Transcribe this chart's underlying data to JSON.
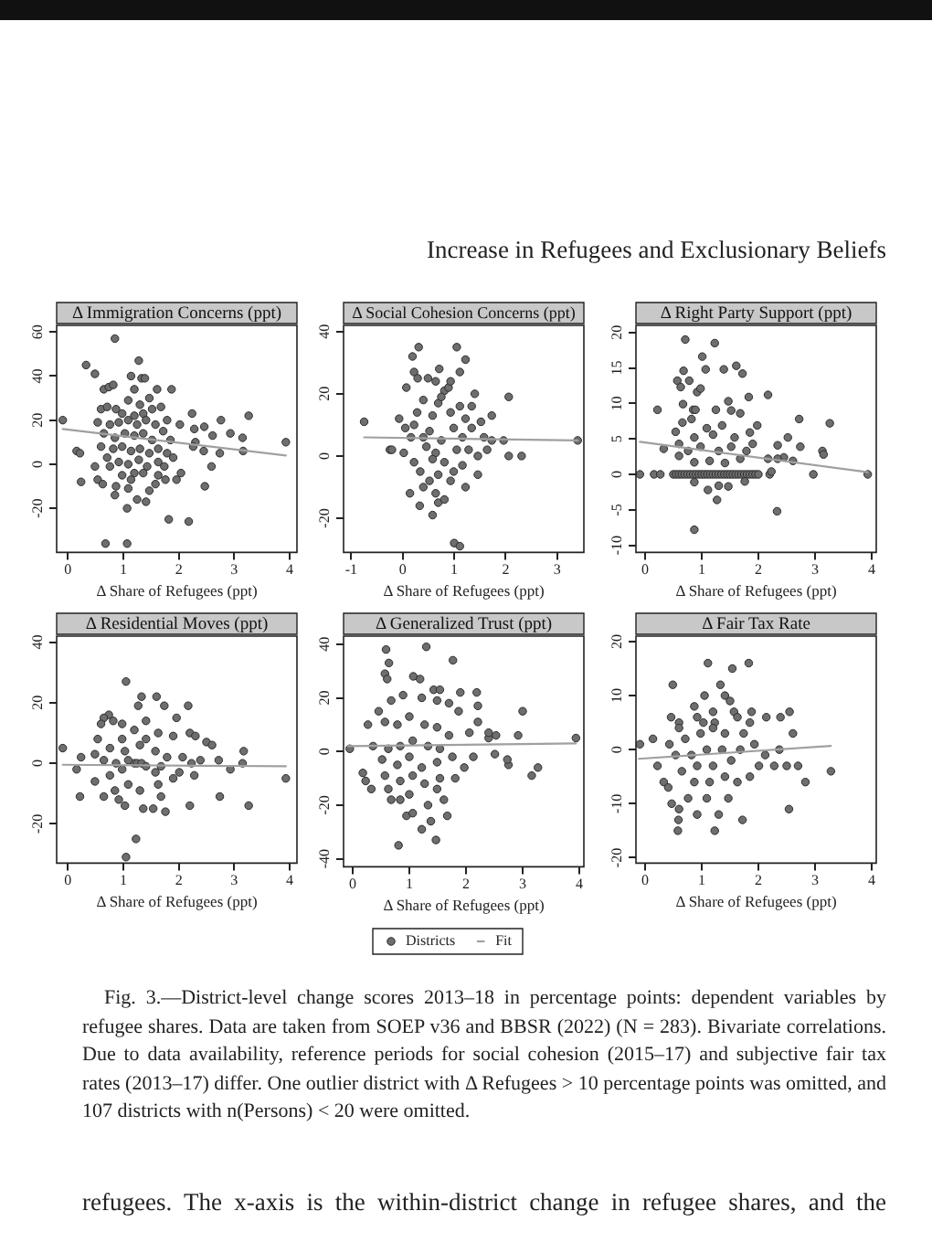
{
  "chart_data": [
    {
      "type": "scatter",
      "title": "Δ Immigration Concerns (ppt)",
      "xlabel": "Δ Share of Refugees (ppt)",
      "xlim": [
        -0.2,
        4.13
      ],
      "xticks": [
        0,
        1,
        2,
        3,
        4
      ],
      "ylim": [
        -40,
        63
      ],
      "yticks": [
        -20,
        0,
        20,
        40,
        60
      ],
      "marker": "circle",
      "annotations": [
        "Increase in Refugees and Exclusionary Beliefs"
      ],
      "series": [
        {
          "type": "scatter",
          "color": "#6e6e6e",
          "x": [
            0.85,
            0.33,
            0.49,
            1.28,
            -0.09,
            0.16,
            0.22,
            0.24,
            0.68,
            1.07,
            1.07,
            0.85,
            1.41,
            1.82,
            2.18,
            1.87,
            2.24,
            2.28,
            2.46,
            2.61,
            2.76,
            2.93,
            3.15,
            3.26,
            3.16,
            2.74,
            3.93,
            2.59,
            2.47,
            1.96,
            1.76,
            2.04,
            2.02,
            2.3,
            2.45,
            2.26,
            0.76,
            0.54,
            0.63,
            0.49,
            1.2,
            1.25,
            1.47,
            0.65,
            0.74,
            0.82,
            1.14,
            1.33,
            1.39,
            1.61,
            1.2,
            1.09,
            1.3,
            1.47,
            0.6,
            0.71,
            0.87,
            0.98,
            1.2,
            1.36,
            1.52,
            1.68,
            1.79,
            0.54,
            0.76,
            0.92,
            1.09,
            1.25,
            1.41,
            1.58,
            1.72,
            0.65,
            0.85,
            1.03,
            1.2,
            1.36,
            1.52,
            1.85,
            0.6,
            0.82,
            0.98,
            1.14,
            1.3,
            1.47,
            1.63,
            1.79,
            0.71,
            0.92,
            1.09,
            1.28,
            1.43,
            1.63,
            0.98,
            1.14,
            1.36,
            1.63,
            0.87,
            1.09,
            1.58,
            1.74,
            1.9
          ],
          "values": [
            57,
            45,
            41,
            47,
            20,
            6,
            5,
            -8,
            -36,
            -36,
            -20,
            -14,
            -17,
            -25,
            -26,
            34,
            23,
            16,
            17,
            13,
            20,
            14,
            12,
            22,
            6,
            5,
            10,
            -1,
            -10,
            -7,
            -7,
            -4,
            18,
            10,
            6,
            8,
            -1,
            -7,
            -9,
            -1,
            -4,
            -16,
            -12,
            34,
            35,
            36,
            40,
            39,
            39,
            34,
            34,
            29,
            27,
            30,
            25,
            26,
            25,
            23,
            22,
            23,
            25,
            26,
            20,
            19,
            18,
            19,
            20,
            18,
            20,
            18,
            15,
            14,
            12,
            14,
            13,
            14,
            11,
            11,
            8,
            7,
            8,
            6,
            7,
            5,
            7,
            5,
            3,
            1,
            0,
            2,
            -1,
            1,
            -5,
            -7,
            -4,
            -5,
            -10,
            -11,
            -9,
            -1,
            3
          ]
        },
        {
          "type": "line",
          "color": "#a0a0a0",
          "marker": "none",
          "x": [
            -0.09,
            3.93
          ],
          "values": [
            16,
            4
          ]
        }
      ]
    },
    {
      "type": "scatter",
      "title": "Δ Social Cohesion Concerns (ppt)",
      "xlabel": "Δ Share of Refugees (ppt)",
      "xlim": [
        -1.15,
        3.52
      ],
      "xticks": [
        -1,
        0,
        1,
        2,
        3
      ],
      "ylim": [
        -31,
        42
      ],
      "yticks": [
        -20,
        0,
        20,
        40
      ],
      "marker": "circle",
      "series": [
        {
          "type": "scatter",
          "color": "#6e6e6e",
          "x": [
            -0.75,
            -0.25,
            -0.21,
            0.31,
            1.05,
            0.19,
            1.22,
            0.71,
            0.22,
            0.29,
            1.11,
            0.07,
            2.06,
            1.73,
            1.96,
            2.06,
            2.31,
            3.4,
            0.33,
            0.58,
            1.0,
            1.11,
            0.69,
            0.81,
            0.14,
            1.22,
            1.46,
            1.64,
            1.73,
            1.34,
            1.4,
            -0.07,
            0.05,
            0.16,
            0.02,
            0.22,
            0.34,
            0.46,
            0.52,
            0.58,
            0.69,
            0.81,
            0.89,
            0.93,
            0.99,
            0.75,
            0.64,
            0.81,
            0.99,
            1.16,
            1.28,
            1.16,
            1.34,
            1.22,
            1.52,
            1.11,
            0.4,
            0.28,
            0.22,
            0.4,
            0.58,
            0.69,
            0.93,
            0.52,
            0.4,
            0.64,
            1.05,
            1.46,
            1.58,
            0.64,
            0.93,
            0.49,
            0.75
          ],
          "values": [
            11,
            2,
            2,
            35,
            35,
            32,
            31,
            28,
            27,
            25,
            27,
            22,
            19,
            5,
            5,
            0,
            0,
            5,
            -16,
            -19,
            -28,
            -29,
            -15,
            -14,
            -12,
            -10,
            -6,
            2,
            13,
            16,
            20,
            12,
            9,
            6,
            1,
            -2,
            -5,
            3,
            8,
            13,
            17,
            21,
            22,
            14,
            9,
            5,
            1,
            -2,
            -5,
            -3,
            2,
            6,
            9,
            12,
            11,
            16,
            18,
            14,
            10,
            6,
            -1,
            -6,
            -8,
            -8,
            -10,
            -12,
            2,
            0,
            6,
            24,
            24,
            25,
            19
          ]
        },
        {
          "type": "line",
          "color": "#a0a0a0",
          "marker": "none",
          "x": [
            -0.75,
            3.4
          ],
          "values": [
            6,
            5
          ]
        }
      ]
    },
    {
      "type": "scatter",
      "title": "Δ Right Party Support (ppt)",
      "xlabel": "Δ Share of Refugees (ppt)",
      "xlim": [
        -0.16,
        4.08
      ],
      "xticks": [
        0,
        1,
        2,
        3,
        4
      ],
      "ylim": [
        -11,
        21
      ],
      "yticks": [
        -10,
        -5,
        0,
        5,
        10,
        15,
        20
      ],
      "marker": "circle",
      "series": [
        {
          "type": "scatter",
          "color": "#6e6e6e",
          "x": [
            -0.09,
            0.16,
            0.27,
            0.5,
            0.55,
            0.6,
            0.65,
            0.7,
            0.75,
            0.8,
            0.85,
            0.9,
            0.95,
            1.0,
            1.05,
            1.1,
            1.15,
            1.2,
            1.25,
            1.3,
            1.35,
            1.4,
            1.45,
            1.5,
            1.55,
            1.6,
            1.65,
            1.7,
            1.75,
            1.8,
            1.85,
            1.9,
            1.95,
            2.0,
            2.2,
            2.97,
            3.93,
            0.71,
            1.23,
            1.01,
            0.68,
            1.07,
            1.61,
            1.39,
            1.72,
            0.57,
            0.63,
            0.78,
            0.92,
            0.98,
            2.17,
            1.83,
            0.22,
            0.85,
            0.89,
            1.47,
            1.25,
            1.52,
            1.68,
            0.67,
            2.72,
            3.26,
            1.98,
            0.66,
            0.82,
            1.09,
            1.36,
            0.54,
            0.87,
            1.2,
            1.58,
            1.85,
            0.33,
            0.6,
            0.76,
            0.98,
            1.3,
            1.52,
            1.79,
            1.9,
            2.52,
            2.34,
            2.45,
            2.61,
            2.74,
            3.13,
            3.15,
            2.17,
            2.34,
            0.6,
            0.87,
            1.14,
            1.41,
            1.68,
            2.23,
            0.87,
            1.11,
            1.3,
            1.27,
            1.47,
            1.76,
            2.33,
            0.87
          ],
          "values": [
            0,
            0,
            0,
            0,
            0,
            0,
            0,
            0,
            0,
            0,
            0,
            0,
            0,
            0,
            0,
            0,
            0,
            0,
            0,
            0,
            0,
            0,
            0,
            0,
            0,
            0,
            0,
            0,
            0,
            0,
            0,
            0,
            0,
            0,
            0,
            0,
            0,
            19,
            18.5,
            16.6,
            14.6,
            14.8,
            15.3,
            14.8,
            14.2,
            13.2,
            12.3,
            13.2,
            11.6,
            12.1,
            11.2,
            10.9,
            9.1,
            9.1,
            9.1,
            10.3,
            9.1,
            9,
            8.6,
            9.9,
            7.8,
            7.2,
            6.9,
            7.3,
            7.8,
            6.5,
            6.9,
            6,
            5.2,
            5.6,
            5.2,
            5.9,
            3.6,
            4.3,
            3.3,
            3.9,
            3.3,
            3.9,
            3.3,
            4.3,
            5.2,
            4.1,
            2.4,
            1.9,
            3.9,
            3.3,
            2.8,
            2.2,
            2.2,
            2.6,
            1.7,
            1.9,
            1.6,
            2.2,
            0.4,
            -1.1,
            -2.2,
            -1.6,
            -3.6,
            -1.7,
            -1,
            -5.2,
            -7.8
          ]
        },
        {
          "type": "line",
          "color": "#a0a0a0",
          "marker": "none",
          "x": [
            -0.09,
            3.93
          ],
          "values": [
            4.6,
            0.3
          ]
        }
      ]
    },
    {
      "type": "scatter",
      "title": "Δ Residential Moves (ppt)",
      "xlabel": "Δ Share of Refugees (ppt)",
      "xlim": [
        -0.2,
        4.13
      ],
      "xticks": [
        0,
        1,
        2,
        3,
        4
      ],
      "ylim": [
        -33,
        42
      ],
      "yticks": [
        -20,
        0,
        20,
        40
      ],
      "marker": "circle",
      "series": [
        {
          "type": "scatter",
          "color": "#6e6e6e",
          "x": [
            1.05,
            1.33,
            1.6,
            1.74,
            1.27,
            2.17,
            1.96,
            0.74,
            0.65,
            0.6,
            0.82,
            0.98,
            1.2,
            1.41,
            1.63,
            1.9,
            2.2,
            2.3,
            2.5,
            2.6,
            2.72,
            2.93,
            3.17,
            3.15,
            3.93,
            -0.09,
            0.24,
            0.16,
            0.22,
            2.2,
            2.74,
            3.26,
            1.76,
            1.54,
            1.23,
            1.05,
            1.36,
            1.03,
            0.65,
            0.85,
            1.09,
            1.3,
            1.63,
            1.9,
            0.49,
            0.76,
            0.98,
            1.2,
            1.25,
            1.33,
            1.41,
            1.09,
            0.87,
            0.65,
            0.49,
            0.76,
            1.03,
            1.3,
            1.58,
            1.79,
            2.07,
            2.23,
            2.39,
            0.54,
            0.98,
            1.41,
            1.68,
            2.01,
            2.28,
            1.68,
            0.92,
            1.58
          ],
          "values": [
            27,
            22,
            22,
            19,
            19,
            19,
            15,
            16,
            15,
            13,
            14,
            13,
            11,
            14,
            10,
            9,
            10,
            9,
            7,
            6,
            1,
            -2,
            4,
            0,
            -5,
            5,
            2,
            -2,
            -11,
            -14,
            -11,
            -14,
            -16,
            -15,
            -25,
            -31,
            -15,
            -14,
            -11,
            -9,
            -7,
            -9,
            -7,
            -5,
            -6,
            -4,
            -2,
            0,
            0,
            0,
            -1,
            1,
            0,
            1,
            3,
            5,
            4,
            6,
            4,
            2,
            2,
            0,
            1,
            8,
            8,
            8,
            -1,
            -3,
            -4,
            -11,
            -12,
            -3
          ]
        },
        {
          "type": "line",
          "color": "#a0a0a0",
          "marker": "none",
          "x": [
            -0.09,
            3.93
          ],
          "values": [
            -0.5,
            -1
          ]
        }
      ]
    },
    {
      "type": "scatter",
      "title": "Δ Generalized Trust (ppt)",
      "xlabel": "Δ Share of Refugees (ppt)",
      "xlim": [
        -0.16,
        4.08
      ],
      "xticks": [
        0,
        1,
        2,
        3,
        4
      ],
      "ylim": [
        -43,
        43
      ],
      "yticks": [
        -40,
        -20,
        0,
        20,
        40
      ],
      "marker": "circle",
      "legend": "bottom",
      "series": [
        {
          "type": "scatter",
          "name": "Districts",
          "color": "#6e6e6e",
          "x": [
            1.3,
            0.59,
            0.64,
            1.77,
            0.57,
            0.61,
            1.07,
            1.19,
            0.27,
            -0.05,
            0.18,
            0.23,
            0.33,
            0.81,
            1.22,
            1.47,
            1.38,
            1.67,
            0.95,
            1.06,
            0.68,
            0.84,
            1.33,
            1.61,
            3.0,
            2.92,
            3.16,
            3.27,
            3.94,
            2.75,
            2.73,
            2.51,
            2.53,
            2.4,
            2.21,
            2.21,
            1.9,
            2.19,
            2.4,
            2.06,
            2.13,
            1.97,
            1.81,
            1.87,
            1.7,
            1.49,
            1.22,
            0.89,
            0.68,
            0.46,
            0.57,
            0.79,
            1.0,
            1.27,
            1.49,
            1.7,
            0.36,
            0.63,
            0.84,
            1.06,
            1.33,
            1.54,
            0.52,
            0.79,
            1.0,
            1.22,
            1.49,
            1.76,
            0.57,
            0.84,
            1.06,
            1.27,
            1.54,
            0.63,
            1.0,
            1.49,
            1.43,
            1.54
          ],
          "values": [
            39,
            38,
            33,
            34,
            29,
            27,
            28,
            27,
            10,
            1,
            -8,
            -11,
            -14,
            -35,
            -29,
            -33,
            -26,
            -24,
            -24,
            -23,
            -18,
            -18,
            -20,
            -18,
            15,
            6,
            -9,
            -6,
            5,
            -5,
            -3,
            -1,
            6,
            5,
            11,
            17,
            22,
            22,
            7,
            7,
            -2,
            -6,
            -10,
            15,
            18,
            19,
            20,
            21,
            19,
            15,
            11,
            10,
            13,
            10,
            9,
            6,
            2,
            1,
            2,
            4,
            2,
            1,
            -3,
            -5,
            -2,
            -6,
            -4,
            -2,
            -9,
            -11,
            -9,
            -12,
            -10,
            -14,
            -16,
            -14,
            23,
            23
          ]
        },
        {
          "type": "line",
          "name": "Fit",
          "color": "#a0a0a0",
          "marker": "none",
          "x": [
            -0.08,
            3.94
          ],
          "values": [
            2,
            3
          ]
        }
      ]
    },
    {
      "type": "scatter",
      "title": "Δ Fair Tax Rate",
      "xlabel": "Δ Share of Refugees (ppt)",
      "xlim": [
        -0.16,
        4.08
      ],
      "xticks": [
        0,
        1,
        2,
        3,
        4
      ],
      "ylim": [
        -21,
        21
      ],
      "yticks": [
        -20,
        -10,
        0,
        10,
        20
      ],
      "marker": "circle",
      "annotations": [
        "Fig. 3.—District-level change scores 2013–18 in percentage points: dependent variables by refugee shares. Data are taken from SOEP v36 and BBSR (2022) (N = 283). Bivariate correlations. Due to data availability, reference periods for social cohesion (2015–17) and subjective fair tax rates (2013–17) differ. One outlier district with Δ Refugees > 10 percentage points was omitted, and 107 districts with n(Persons) < 20 were omitted.",
        "refugees. The x-axis is the within-district change in refugee shares, and the"
      ],
      "series": [
        {
          "type": "scatter",
          "color": "#6e6e6e",
          "x": [
            1.83,
            1.11,
            1.54,
            0.49,
            1.33,
            1.05,
            1.41,
            1.5,
            1.57,
            1.88,
            2.55,
            2.39,
            2.14,
            1.63,
            0.87,
            0.46,
            0.6,
            0.92,
            1.2,
            1.23,
            2.61,
            -0.09,
            0.14,
            0.22,
            0.33,
            0.41,
            0.47,
            0.6,
            0.58,
            0.59,
            0.92,
            1.3,
            1.23,
            1.72,
            2.54,
            3.28,
            2.83,
            2.7,
            2.5,
            2.28,
            2.37,
            2.12,
            1.93,
            2.01,
            1.85,
            1.63,
            1.47,
            1.09,
            0.76,
            0.87,
            1.14,
            1.41,
            0.65,
            0.92,
            1.2,
            1.52,
            0.54,
            0.82,
            1.09,
            1.36,
            1.68,
            0.43,
            0.71,
            0.98,
            1.2,
            1.41,
            1.74,
            0.6,
            1.03,
            1.85
          ],
          "values": [
            16,
            16,
            15,
            12,
            12,
            10,
            10,
            9,
            7,
            7,
            7,
            6,
            6,
            6,
            8,
            6,
            5,
            6,
            7,
            5,
            3,
            1,
            2,
            -3,
            -6,
            -7,
            -10,
            -11,
            -15,
            -13,
            -12,
            -12,
            -15,
            -13,
            -11,
            -4,
            -6,
            -3,
            -3,
            -3,
            0,
            -1,
            1,
            -3,
            -5,
            -6,
            -9,
            -9,
            -9,
            -6,
            -6,
            -5,
            -4,
            -3,
            -3,
            -2,
            -1,
            -1,
            0,
            0,
            0,
            1,
            2,
            3,
            4,
            3,
            3,
            4,
            5,
            5
          ]
        },
        {
          "type": "line",
          "color": "#a0a0a0",
          "marker": "none",
          "x": [
            -0.11,
            3.28
          ],
          "values": [
            -1.7,
            0.7
          ]
        }
      ]
    }
  ]
}
